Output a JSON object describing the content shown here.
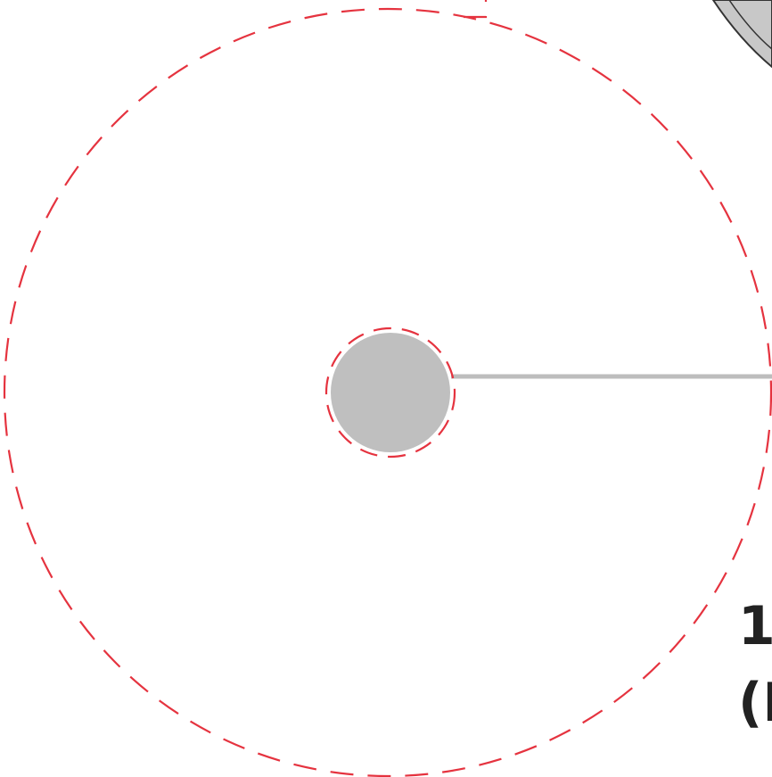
{
  "labels": {
    "line1": "1",
    "line2": "(I"
  },
  "colors": {
    "dash_red": "#e5333f",
    "shaft_gray": "#bdbdbd",
    "hub_gray": "#bfbfbf",
    "wheel_dark": "#333333",
    "wheel_light": "#c8c8c8",
    "text": "#222222"
  }
}
